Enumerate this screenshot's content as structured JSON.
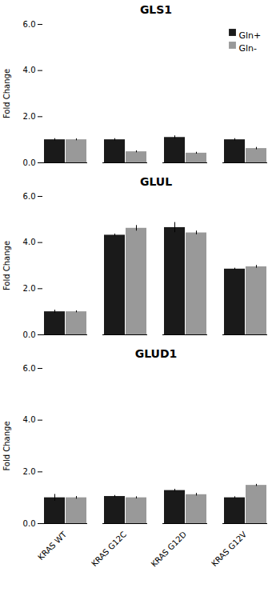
{
  "chart_data": [
    {
      "type": "bar",
      "title": "GLS1",
      "ylabel": "Fold Change",
      "categories": [
        "KRAS WT",
        "KRAS G12C",
        "KRAS G12D",
        "KRAS G12V"
      ],
      "series": [
        {
          "name": "Gln+",
          "color": "#1a1a1a",
          "values": [
            1.0,
            1.0,
            1.1,
            1.0
          ],
          "errors": [
            0.05,
            0.05,
            0.07,
            0.05
          ]
        },
        {
          "name": "Gln-",
          "color": "#999999",
          "values": [
            1.0,
            0.48,
            0.42,
            0.62
          ],
          "errors": [
            0.04,
            0.04,
            0.04,
            0.05
          ]
        }
      ],
      "ylim": [
        0,
        6
      ],
      "yticks": [
        0,
        2,
        4,
        6
      ],
      "legend": "upper right",
      "tick_labels": "y"
    },
    {
      "type": "bar",
      "title": "GLUL",
      "ylabel": "Fold Change",
      "categories": [
        "KRAS WT",
        "KRAS G12C",
        "KRAS G12D",
        "KRAS G12V"
      ],
      "series": [
        {
          "name": "Gln+",
          "color": "#1a1a1a",
          "values": [
            1.0,
            4.32,
            4.65,
            2.85
          ],
          "errors": [
            0.07,
            0.05,
            0.22,
            0.04
          ]
        },
        {
          "name": "Gln-",
          "color": "#999999",
          "values": [
            1.0,
            4.62,
            4.42,
            2.95
          ],
          "errors": [
            0.04,
            0.12,
            0.08,
            0.06
          ]
        }
      ],
      "ylim": [
        0,
        6
      ],
      "yticks": [
        0,
        2,
        4,
        6
      ],
      "tick_labels": "y"
    },
    {
      "type": "bar",
      "title": "GLUD1",
      "ylabel": "Fold Change",
      "categories": [
        "KRAS WT",
        "KRAS G12C",
        "KRAS G12D",
        "KRAS G12V"
      ],
      "series": [
        {
          "name": "Gln+",
          "color": "#1a1a1a",
          "values": [
            1.0,
            1.05,
            1.28,
            1.0
          ],
          "errors": [
            0.13,
            0.04,
            0.05,
            0.04
          ]
        },
        {
          "name": "Gln-",
          "color": "#999999",
          "values": [
            1.0,
            1.0,
            1.12,
            1.48
          ],
          "errors": [
            0.05,
            0.04,
            0.05,
            0.04
          ]
        }
      ],
      "ylim": [
        0,
        6
      ],
      "yticks": [
        0,
        2,
        4,
        6
      ]
    }
  ]
}
